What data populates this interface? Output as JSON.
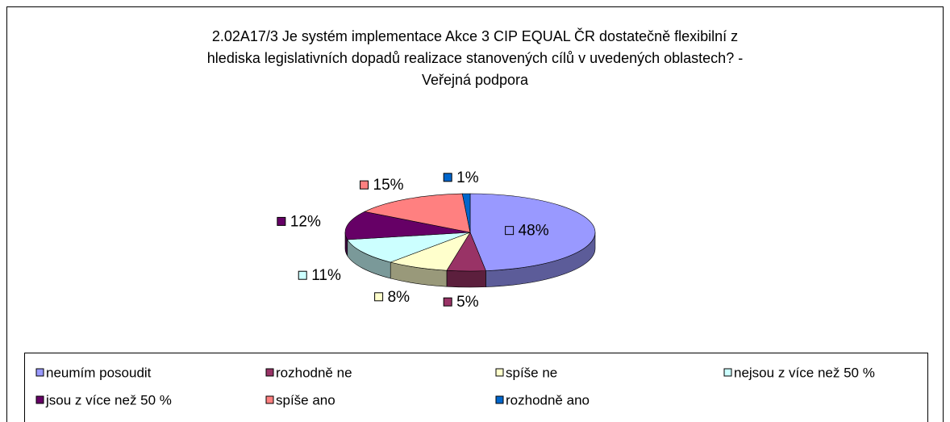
{
  "chart_data": {
    "type": "pie",
    "title": [
      "2.02A17/3 Je systém implementace Akce 3 CIP EQUAL ČR dostatečně flexibilní z",
      "hlediska legislativních dopadů realizace stanovených cílů v uvedených oblastech? -",
      "Veřejná podpora"
    ],
    "categories": [
      "neumím posoudit",
      "rozhodně ne",
      "spíše ne",
      "nejsou z více než 50 %",
      "jsou z více než 50 %",
      "spíše ano",
      "rozhodně ano"
    ],
    "values": [
      48,
      5,
      8,
      11,
      12,
      15,
      1
    ],
    "value_labels": [
      "48%",
      "5%",
      "8%",
      "11%",
      "12%",
      "15%",
      "1%"
    ],
    "colors": [
      "#9999ff",
      "#993366",
      "#ffffcc",
      "#ccffff",
      "#660066",
      "#ff8080",
      "#0066cc"
    ],
    "legend": "bottom"
  }
}
